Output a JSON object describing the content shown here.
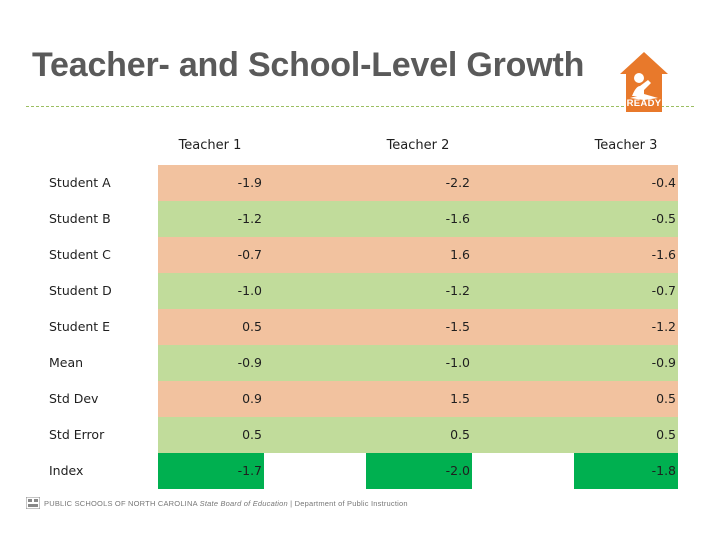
{
  "slide": {
    "title": "Teacher- and School-Level Growth",
    "logo_text": "READY"
  },
  "colors": {
    "orange_band": "#f2c29f",
    "green_band": "#c1dc9b",
    "index_green": "#00b050",
    "title_gray": "#5a5a5a",
    "rule_green": "#9cbf62",
    "logo_orange": "#e8792b"
  },
  "table": {
    "columns": [
      "Teacher 1",
      "Teacher 2",
      "Teacher 3"
    ],
    "rows": [
      {
        "label": "Student A",
        "values": [
          "-1.9",
          "-2.2",
          "-0.4"
        ],
        "band": "orange"
      },
      {
        "label": "Student B",
        "values": [
          "-1.2",
          "-1.6",
          "-0.5"
        ],
        "band": "green"
      },
      {
        "label": "Student C",
        "values": [
          "-0.7",
          "1.6",
          "-1.6"
        ],
        "band": "orange"
      },
      {
        "label": "Student D",
        "values": [
          "-1.0",
          "-1.2",
          "-0.7"
        ],
        "band": "green"
      },
      {
        "label": "Student E",
        "values": [
          "0.5",
          "-1.5",
          "-1.2"
        ],
        "band": "orange"
      },
      {
        "label": "Mean",
        "values": [
          "-0.9",
          "-1.0",
          "-0.9"
        ],
        "band": "green"
      },
      {
        "label": "Std Dev",
        "values": [
          "0.9",
          "1.5",
          "0.5"
        ],
        "band": "orange"
      },
      {
        "label": "Std Error",
        "values": [
          "0.5",
          "0.5",
          "0.5"
        ],
        "band": "green"
      },
      {
        "label": "Index",
        "values": [
          "-1.7",
          "-2.0",
          "-1.8"
        ],
        "band": "index"
      }
    ]
  },
  "footer": {
    "org": "PUBLIC SCHOOLS OF NORTH CAROLINA",
    "board": "State Board of Education",
    "separator": "|",
    "dept": "Department of Public Instruction"
  }
}
